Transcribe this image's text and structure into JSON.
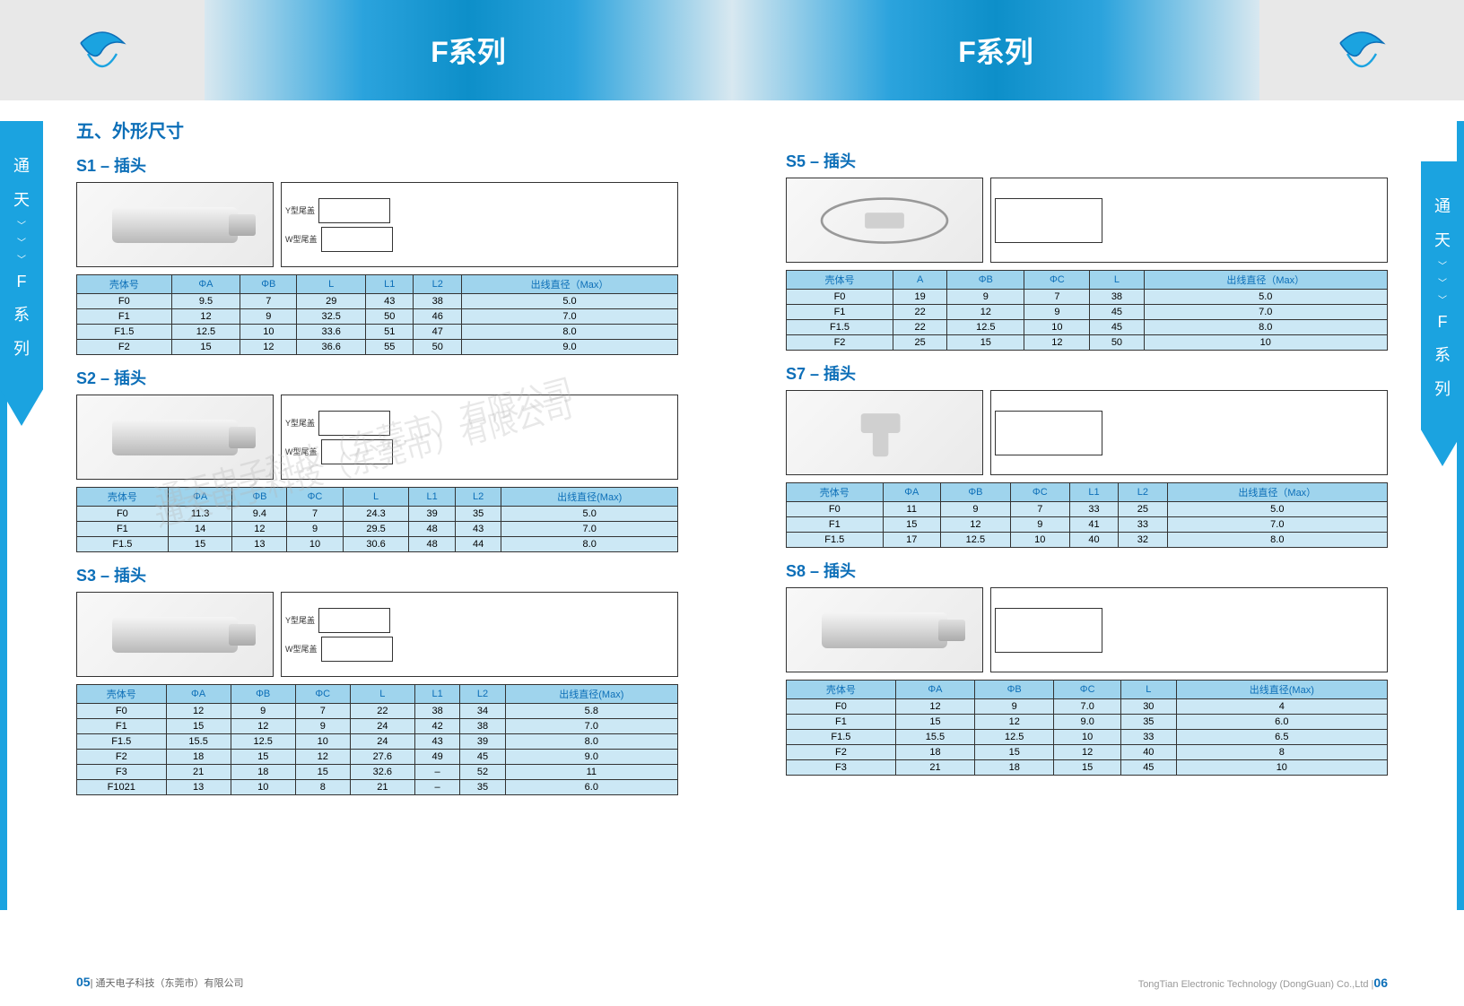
{
  "banner": {
    "title_left": "F系列",
    "title_right": "F系列"
  },
  "side_tab": {
    "c1": "通",
    "c2": "天",
    "c3": "F",
    "c4": "系",
    "c5": "列"
  },
  "main_title": "五、外形尺寸",
  "sections": {
    "s1": {
      "title": "S1 – 插头",
      "diagram_labels": {
        "y": "Y型尾盖",
        "w": "W型尾盖"
      },
      "columns": [
        "壳体号",
        "ΦA",
        "ΦB",
        "L",
        "L1",
        "L2",
        "出线直径（Max）"
      ],
      "rows": [
        [
          "F0",
          "9.5",
          "7",
          "29",
          "43",
          "38",
          "5.0"
        ],
        [
          "F1",
          "12",
          "9",
          "32.5",
          "50",
          "46",
          "7.0"
        ],
        [
          "F1.5",
          "12.5",
          "10",
          "33.6",
          "51",
          "47",
          "8.0"
        ],
        [
          "F2",
          "15",
          "12",
          "36.6",
          "55",
          "50",
          "9.0"
        ]
      ]
    },
    "s2": {
      "title": "S2 – 插头",
      "diagram_labels": {
        "y": "Y型尾盖",
        "w": "W型尾盖"
      },
      "columns": [
        "壳体号",
        "ΦA",
        "ΦB",
        "ΦC",
        "L",
        "L1",
        "L2",
        "出线直径(Max)"
      ],
      "rows": [
        [
          "F0",
          "11.3",
          "9.4",
          "7",
          "24.3",
          "39",
          "35",
          "5.0"
        ],
        [
          "F1",
          "14",
          "12",
          "9",
          "29.5",
          "48",
          "43",
          "7.0"
        ],
        [
          "F1.5",
          "15",
          "13",
          "10",
          "30.6",
          "48",
          "44",
          "8.0"
        ]
      ]
    },
    "s3": {
      "title": "S3 – 插头",
      "diagram_labels": {
        "y": "Y型尾盖",
        "w": "W型尾盖"
      },
      "columns": [
        "壳体号",
        "ΦA",
        "ΦB",
        "ΦC",
        "L",
        "L1",
        "L2",
        "出线直径(Max)"
      ],
      "rows": [
        [
          "F0",
          "12",
          "9",
          "7",
          "22",
          "38",
          "34",
          "5.8"
        ],
        [
          "F1",
          "15",
          "12",
          "9",
          "24",
          "42",
          "38",
          "7.0"
        ],
        [
          "F1.5",
          "15.5",
          "12.5",
          "10",
          "24",
          "43",
          "39",
          "8.0"
        ],
        [
          "F2",
          "18",
          "15",
          "12",
          "27.6",
          "49",
          "45",
          "9.0"
        ],
        [
          "F3",
          "21",
          "18",
          "15",
          "32.6",
          "–",
          "52",
          "11"
        ],
        [
          "F1021",
          "13",
          "10",
          "8",
          "21",
          "–",
          "35",
          "6.0"
        ]
      ]
    },
    "s5": {
      "title": "S5 – 插头",
      "columns": [
        "壳体号",
        "A",
        "ΦB",
        "ΦC",
        "L",
        "出线直径（Max）"
      ],
      "rows": [
        [
          "F0",
          "19",
          "9",
          "7",
          "38",
          "5.0"
        ],
        [
          "F1",
          "22",
          "12",
          "9",
          "45",
          "7.0"
        ],
        [
          "F1.5",
          "22",
          "12.5",
          "10",
          "45",
          "8.0"
        ],
        [
          "F2",
          "25",
          "15",
          "12",
          "50",
          "10"
        ]
      ]
    },
    "s7": {
      "title": "S7 – 插头",
      "columns": [
        "壳体号",
        "ΦA",
        "ΦB",
        "ΦC",
        "L1",
        "L2",
        "出线直径（Max）"
      ],
      "rows": [
        [
          "F0",
          "11",
          "9",
          "7",
          "33",
          "25",
          "5.0"
        ],
        [
          "F1",
          "15",
          "12",
          "9",
          "41",
          "33",
          "7.0"
        ],
        [
          "F1.5",
          "17",
          "12.5",
          "10",
          "40",
          "32",
          "8.0"
        ]
      ]
    },
    "s8": {
      "title": "S8 – 插头",
      "columns": [
        "壳体号",
        "ΦA",
        "ΦB",
        "ΦC",
        "L",
        "出线直径(Max)"
      ],
      "rows": [
        [
          "F0",
          "12",
          "9",
          "7.0",
          "30",
          "4"
        ],
        [
          "F1",
          "15",
          "12",
          "9.0",
          "35",
          "6.0"
        ],
        [
          "F1.5",
          "15.5",
          "12.5",
          "10",
          "33",
          "6.5"
        ],
        [
          "F2",
          "18",
          "15",
          "12",
          "40",
          "8"
        ],
        [
          "F3",
          "21",
          "18",
          "15",
          "45",
          "10"
        ]
      ]
    }
  },
  "footer": {
    "left_page": "05",
    "left_text": "| 通天电子科技（东莞市）有限公司",
    "right_text": "TongTian Electronic Technology (DongGuan) Co.,Ltd |",
    "right_page": "06"
  },
  "watermark": "通天电子科技（东莞市）有限公司",
  "colors": {
    "primary_blue": "#0d6fb8",
    "tab_blue": "#1ba3e0",
    "th_bg": "#9fd4ed",
    "td_bg": "#cce8f5"
  }
}
